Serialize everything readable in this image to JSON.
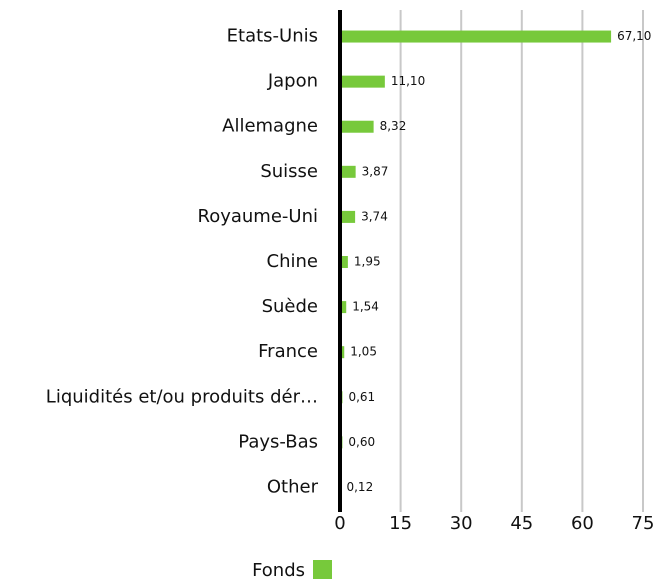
{
  "chart_data": {
    "type": "barh",
    "categories": [
      "Etats-Unis",
      "Japon",
      "Allemagne",
      "Suisse",
      "Royaume-Uni",
      "Chine",
      "Suède",
      "France",
      "Liquidités et/ou produits dér…",
      "Pays-Bas",
      "Other"
    ],
    "series": [
      {
        "name": "Fonds",
        "color": "#77c93b",
        "values": [
          67.1,
          11.1,
          8.32,
          3.87,
          3.74,
          1.95,
          1.54,
          1.05,
          0.61,
          0.6,
          0.12
        ],
        "value_labels": [
          "67,10",
          "11,10",
          "8,32",
          "3,87",
          "3,74",
          "1,95",
          "1,54",
          "1,05",
          "0,61",
          "0,60",
          "0,12"
        ]
      }
    ],
    "xlim": [
      0,
      75
    ],
    "xticks": [
      0,
      15,
      30,
      45,
      60,
      75
    ],
    "grid": true
  }
}
